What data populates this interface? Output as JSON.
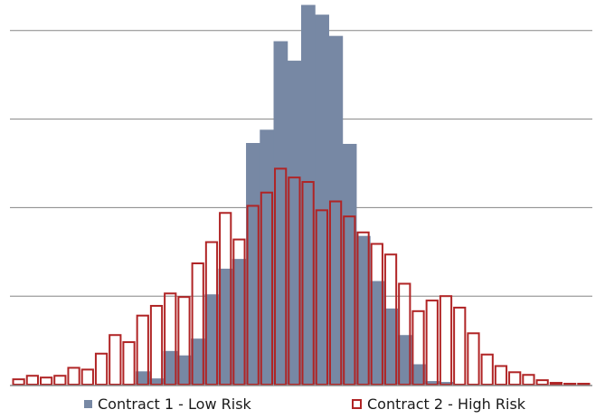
{
  "chart_data": {
    "type": "bar",
    "title": "",
    "xlabel": "",
    "ylabel": "",
    "ylim": [
      0,
      4.3
    ],
    "grid": true,
    "gridlines": [
      1,
      2,
      3,
      4
    ],
    "legend_position": "bottom",
    "colors": {
      "low": "#7788a4",
      "high": "#b02425",
      "grid": "#858585",
      "axis": "#8a8a8a"
    },
    "series": [
      {
        "name": "Contract 1 - Low Risk",
        "style": "filled",
        "values": [
          0,
          0,
          0,
          0,
          0,
          0,
          0,
          0,
          0.01,
          0.15,
          0.07,
          0.38,
          0.33,
          0.52,
          1.02,
          1.31,
          1.42,
          2.73,
          2.88,
          3.88,
          3.66,
          4.29,
          4.18,
          3.94,
          2.72,
          1.68,
          1.17,
          0.86,
          0.56,
          0.23,
          0.04,
          0.03,
          0,
          0,
          0,
          0,
          0,
          0,
          0,
          0,
          0,
          0
        ]
      },
      {
        "name": "Contract 2 - High Risk",
        "style": "outline",
        "values": [
          0.06,
          0.1,
          0.08,
          0.1,
          0.19,
          0.17,
          0.35,
          0.56,
          0.48,
          0.78,
          0.89,
          1.03,
          0.99,
          1.37,
          1.61,
          1.94,
          1.64,
          2.02,
          2.17,
          2.44,
          2.34,
          2.29,
          1.97,
          2.07,
          1.9,
          1.72,
          1.59,
          1.47,
          1.14,
          0.83,
          0.95,
          1.0,
          0.87,
          0.58,
          0.34,
          0.21,
          0.14,
          0.11,
          0.05,
          0.02,
          0.01,
          0.01
        ]
      }
    ]
  }
}
